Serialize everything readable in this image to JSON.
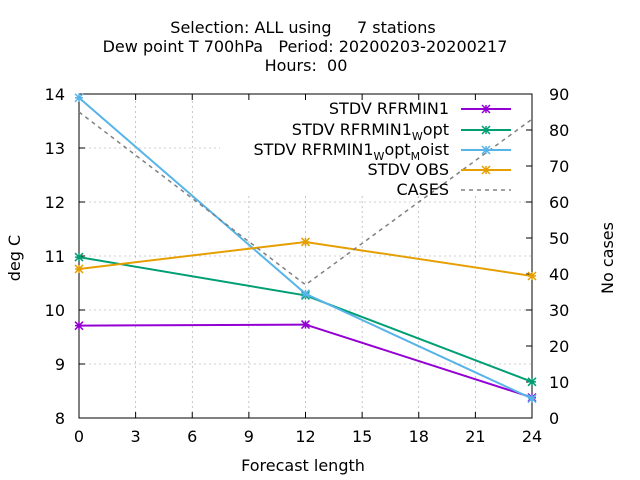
{
  "chart_data": {
    "type": "line",
    "title_lines": [
      "Selection: ALL using     7 stations",
      "Dew point T 700hPa   Period: 20200203-20200217",
      "Hours:  00"
    ],
    "xlabel": "Forecast length",
    "ylabel": "deg C",
    "y2label": "No cases",
    "xlim": [
      0,
      24
    ],
    "ylim": [
      8,
      14
    ],
    "y2lim": [
      0,
      90
    ],
    "x_ticks": [
      0,
      3,
      6,
      9,
      12,
      15,
      18,
      21,
      24
    ],
    "y_ticks": [
      8,
      9,
      10,
      11,
      12,
      13,
      14
    ],
    "y2_ticks": [
      0,
      10,
      20,
      30,
      40,
      50,
      60,
      70,
      80,
      90
    ],
    "grid": true,
    "legend_position": "top-right",
    "x": [
      0,
      12,
      24
    ],
    "series": [
      {
        "name": "STDV RFRMIN1",
        "values": [
          9.71,
          9.73,
          8.38
        ],
        "color": "#9400d3",
        "axis": "y",
        "marker": "x"
      },
      {
        "name": "STDV RFRMIN1_W opt",
        "legend": {
          "main": "STDV RFRMIN1",
          "sub": "W",
          "rest": "opt"
        },
        "values": [
          10.98,
          10.27,
          8.67
        ],
        "color": "#009e73",
        "axis": "y",
        "marker": "x"
      },
      {
        "name": "STDV RFRMIN1_W opt_M oist",
        "legend": {
          "main": "STDV RFRMIN1",
          "sub": "W",
          "rest": "opt",
          "sub2": "M",
          "rest2": "oist"
        },
        "values": [
          13.93,
          10.3,
          8.36
        ],
        "color": "#56b4e9",
        "axis": "y",
        "marker": "x"
      },
      {
        "name": "STDV OBS",
        "values": [
          10.76,
          11.26,
          10.63
        ],
        "color": "#e69f00",
        "axis": "y",
        "marker": "x"
      },
      {
        "name": "CASES",
        "values": [
          85,
          37,
          83
        ],
        "color": "#808080",
        "axis": "y2",
        "dashed": true
      }
    ]
  }
}
